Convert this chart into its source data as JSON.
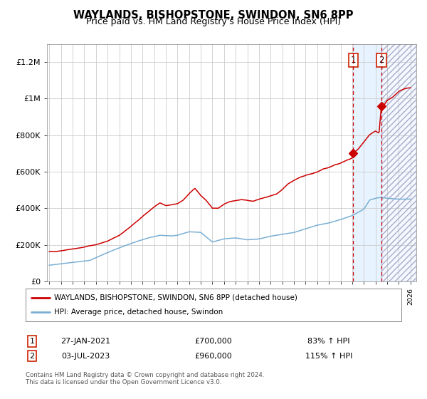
{
  "title": "WAYLANDS, BISHOPSTONE, SWINDON, SN6 8PP",
  "subtitle": "Price paid vs. HM Land Registry's House Price Index (HPI)",
  "ylabel_ticks": [
    "£0",
    "£200K",
    "£400K",
    "£600K",
    "£800K",
    "£1M",
    "£1.2M"
  ],
  "ytick_values": [
    0,
    200000,
    400000,
    600000,
    800000,
    1000000,
    1200000
  ],
  "ylim": [
    0,
    1300000
  ],
  "xlim_start": 1994.8,
  "xlim_end": 2026.5,
  "sale1_date": 2021.08,
  "sale1_price": 700000,
  "sale1_label": "1",
  "sale1_text": "27-JAN-2021",
  "sale1_price_text": "£700,000",
  "sale1_pct": "83% ↑ HPI",
  "sale2_date": 2023.5,
  "sale2_price": 960000,
  "sale2_label": "2",
  "sale2_text": "03-JUL-2023",
  "sale2_price_text": "£960,000",
  "sale2_pct": "115% ↑ HPI",
  "line1_color": "#cc0000",
  "line2_color": "#7aafd4",
  "shade_color": "#ddeeff",
  "vline_color": "#cc0000",
  "marker_color": "#cc0000",
  "grid_color": "#cccccc",
  "background_color": "#ffffff",
  "legend1_label": "WAYLANDS, BISHOPSTONE, SWINDON, SN6 8PP (detached house)",
  "legend2_label": "HPI: Average price, detached house, Swindon",
  "footer": "Contains HM Land Registry data © Crown copyright and database right 2024.\nThis data is licensed under the Open Government Licence v3.0.",
  "title_fontsize": 10.5,
  "subtitle_fontsize": 9
}
